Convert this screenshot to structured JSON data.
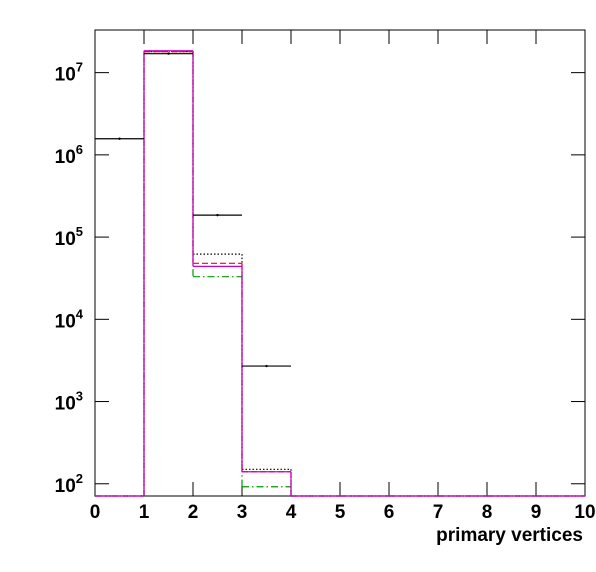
{
  "chart_data": {
    "type": "histogram",
    "x_label": "primary vertices",
    "bins": [
      0,
      1,
      2,
      3,
      4,
      5,
      6,
      7,
      8,
      9,
      10
    ],
    "series": [
      {
        "color": "#000000",
        "style": "dotted",
        "values": [
          0,
          18000000,
          62000,
          150,
          0,
          0,
          0,
          0,
          0,
          0
        ]
      },
      {
        "color": "#009900",
        "style": "dashdot",
        "values": [
          0,
          18000000,
          33000,
          92,
          0,
          0,
          0,
          0,
          0,
          0
        ]
      },
      {
        "color": "#ff0000",
        "style": "dashed",
        "values": [
          0,
          18000000,
          48000,
          140,
          0,
          0,
          0,
          0,
          0,
          0
        ]
      },
      {
        "color": "#cc00cc",
        "style": "solid",
        "values": [
          0,
          18500000,
          44000,
          140,
          0,
          0,
          0,
          0,
          0,
          0
        ]
      },
      {
        "color": "#000000",
        "style": "points",
        "values": [
          1570000,
          17000000,
          185000,
          2700,
          0,
          0,
          0,
          0,
          0,
          0
        ]
      }
    ],
    "xlim": [
      0,
      10
    ],
    "xticks": [
      0,
      1,
      2,
      3,
      4,
      5,
      6,
      7,
      8,
      9,
      10
    ],
    "ylim": [
      71,
      33000000
    ],
    "log_y": true,
    "yticks": [
      {
        "value": 100,
        "label": "10",
        "exponent": "2"
      },
      {
        "value": 1000,
        "label": "10",
        "exponent": "3"
      },
      {
        "value": 10000,
        "label": "10",
        "exponent": "4"
      },
      {
        "value": 100000,
        "label": "10",
        "exponent": "5"
      },
      {
        "value": 1000000,
        "label": "10",
        "exponent": "6"
      },
      {
        "value": 10000000,
        "label": "10",
        "exponent": "7"
      }
    ]
  }
}
